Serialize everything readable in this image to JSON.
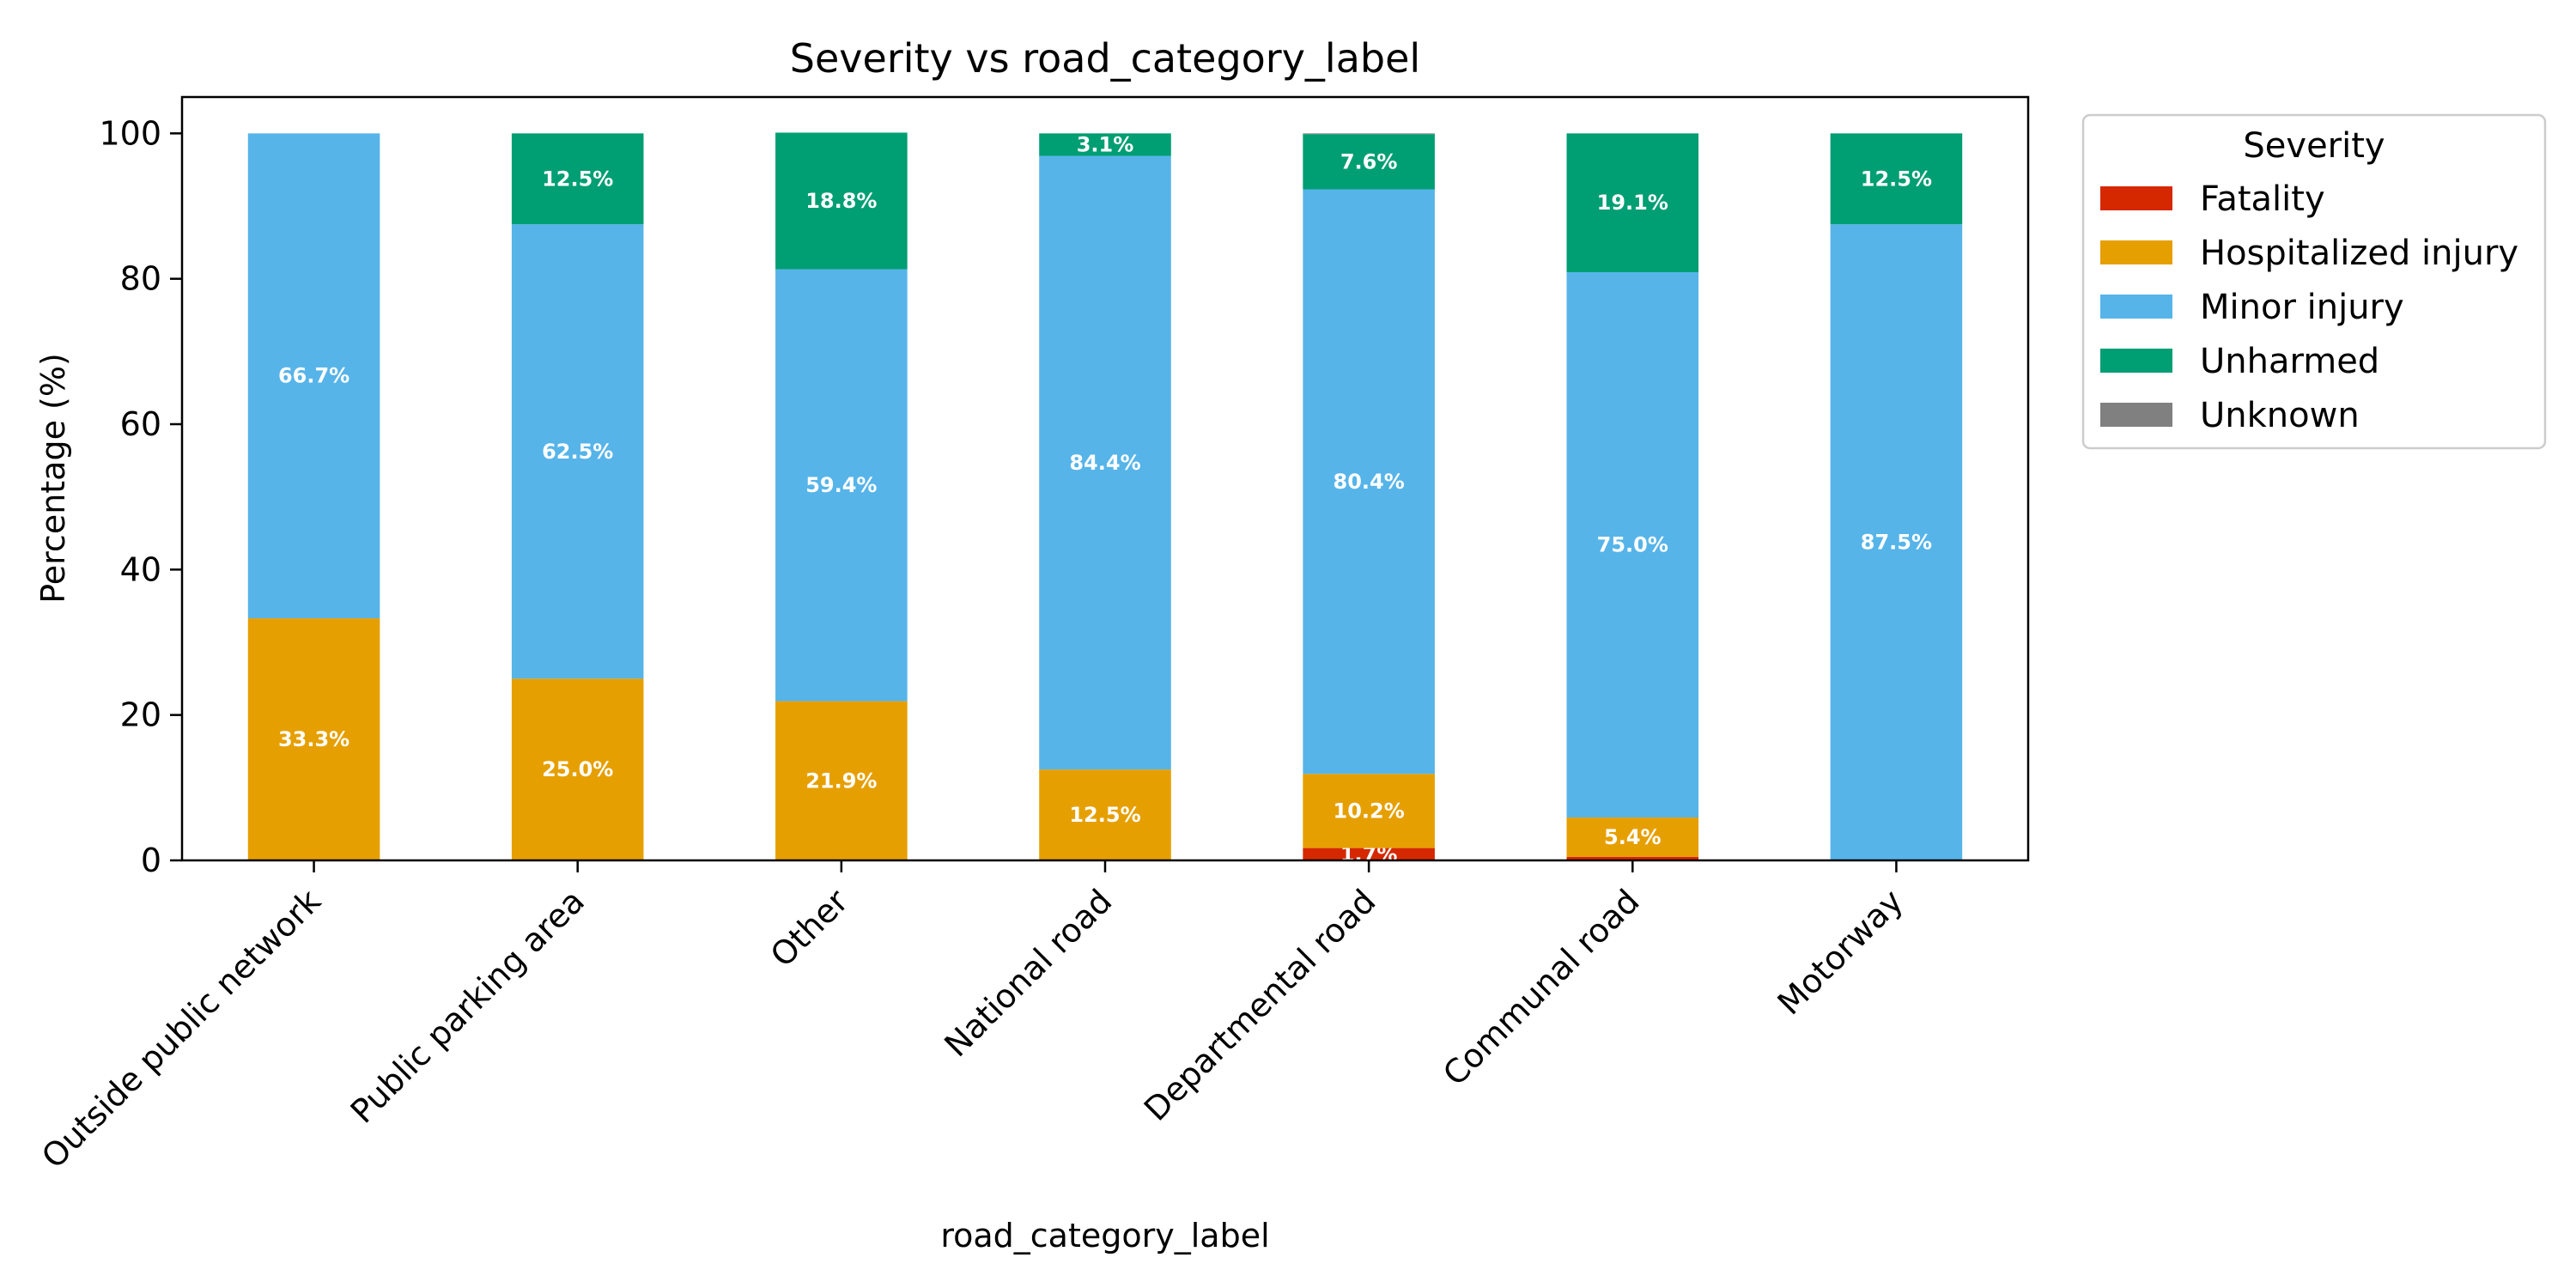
{
  "chart_data": {
    "type": "bar",
    "stacked": true,
    "title": "Severity vs road_category_label",
    "xlabel": "road_category_label",
    "ylabel": "Percentage (%)",
    "ylim": [
      0,
      105
    ],
    "yticks": [
      0,
      20,
      40,
      60,
      80,
      100
    ],
    "grid": false,
    "legend": {
      "title": "Severity",
      "placement": "outside-top-right"
    },
    "categories": [
      "Outside public network",
      "Public parking area",
      "Other",
      "National road",
      "Departmental road",
      "Communal road",
      "Motorway"
    ],
    "series": [
      {
        "name": "Fatality",
        "color": "#d62800",
        "values": [
          0,
          0,
          0,
          0,
          1.7,
          0.5,
          0
        ],
        "labels": [
          "",
          "",
          "",
          "",
          "1.7%",
          "",
          ""
        ]
      },
      {
        "name": "Hospitalized injury",
        "color": "#e69f00",
        "values": [
          33.3,
          25.0,
          21.9,
          12.5,
          10.2,
          5.4,
          0
        ],
        "labels": [
          "33.3%",
          "25.0%",
          "21.9%",
          "12.5%",
          "10.2%",
          "5.4%",
          ""
        ]
      },
      {
        "name": "Minor injury",
        "color": "#56b4e9",
        "values": [
          66.7,
          62.5,
          59.4,
          84.4,
          80.4,
          75.0,
          87.5
        ],
        "labels": [
          "66.7%",
          "62.5%",
          "59.4%",
          "84.4%",
          "80.4%",
          "75.0%",
          "87.5%"
        ]
      },
      {
        "name": "Unharmed",
        "color": "#009e73",
        "values": [
          0,
          12.5,
          18.8,
          3.1,
          7.6,
          19.1,
          12.5
        ],
        "labels": [
          "",
          "12.5%",
          "18.8%",
          "3.1%",
          "7.6%",
          "19.1%",
          "12.5%"
        ]
      },
      {
        "name": "Unknown",
        "color": "#808080",
        "values": [
          0,
          0,
          0,
          0,
          0.1,
          0,
          0
        ],
        "labels": [
          "",
          "",
          "",
          "",
          "",
          "",
          ""
        ]
      }
    ]
  }
}
